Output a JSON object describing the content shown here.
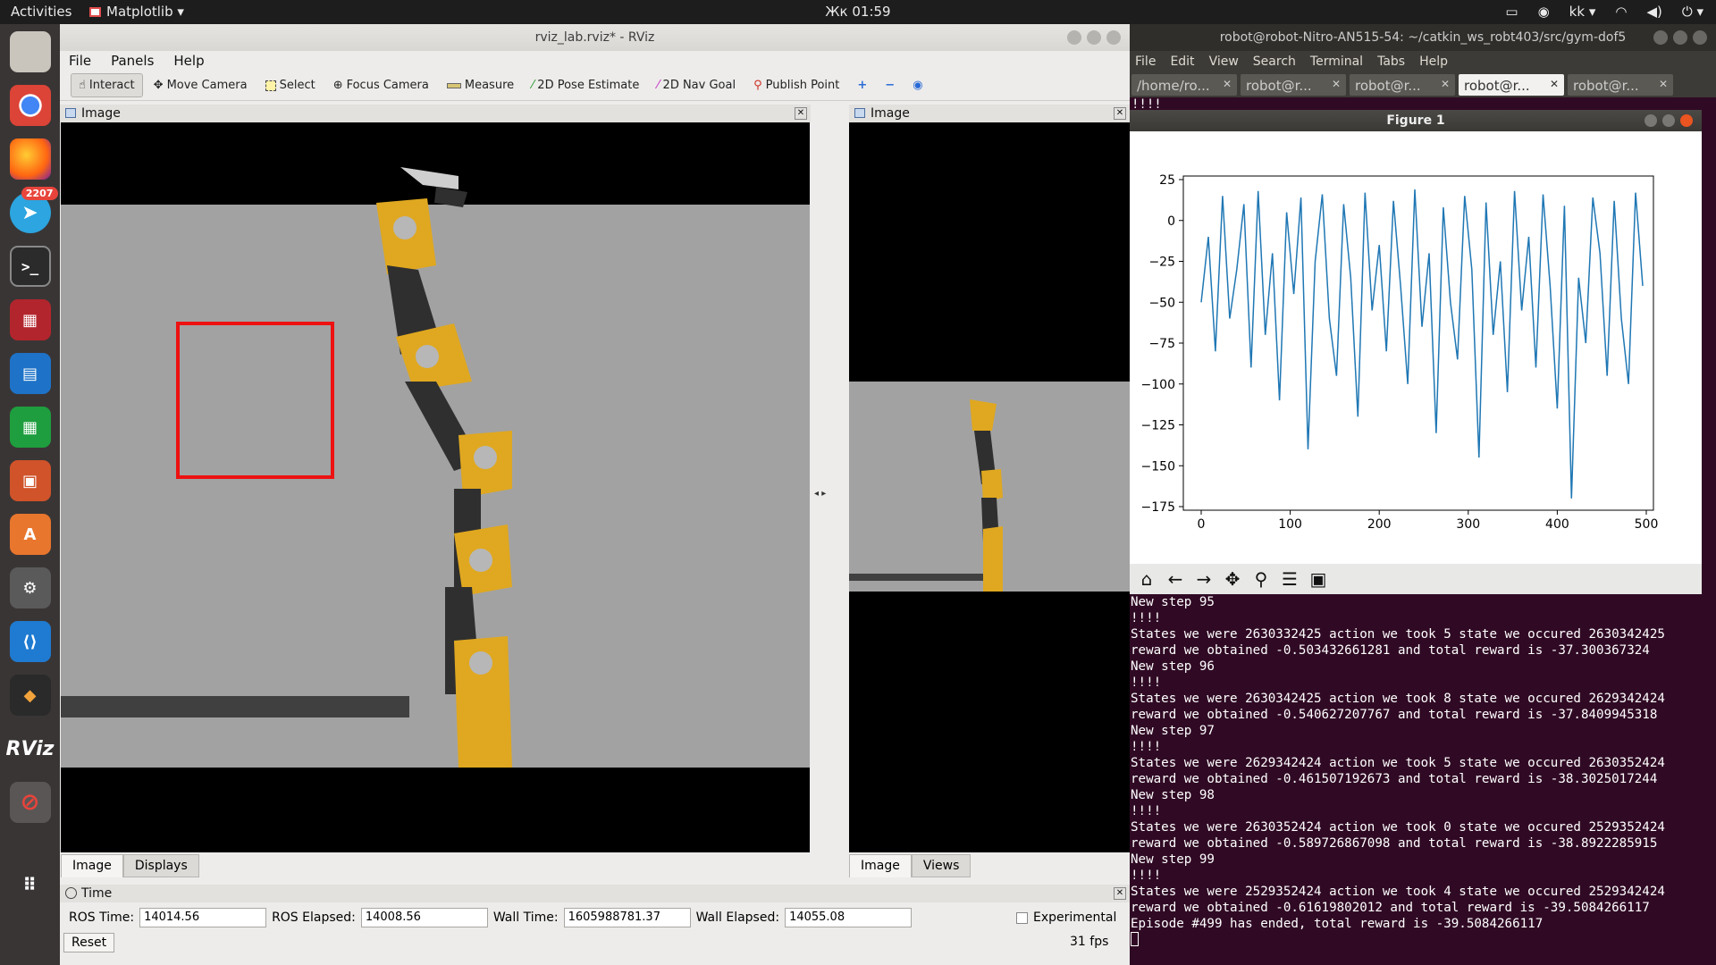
{
  "topbar": {
    "activities": "Activities",
    "app_menu": "Matplotlib ▾",
    "clock": "Жк 01:59",
    "user": "kk ▾"
  },
  "dock": {
    "telegram_badge": "2207",
    "rviz_label": "RViz"
  },
  "rviz": {
    "window_title": "rviz_lab.rviz* - RViz",
    "menu": [
      "File",
      "Panels",
      "Help"
    ],
    "tools": [
      "Interact",
      "Move Camera",
      "Select",
      "Focus Camera",
      "Measure",
      "2D Pose Estimate",
      "2D Nav Goal",
      "Publish Point"
    ],
    "left_panel": {
      "title": "Image",
      "tabs": [
        "Image",
        "Displays"
      ]
    },
    "right_panel": {
      "title": "Image",
      "tabs": [
        "Image",
        "Views"
      ]
    },
    "time_panel": {
      "title": "Time",
      "ros_time_label": "ROS Time:",
      "ros_time": "14014.56",
      "ros_elapsed_label": "ROS Elapsed:",
      "ros_elapsed": "14008.56",
      "wall_time_label": "Wall Time:",
      "wall_time": "1605988781.37",
      "wall_elapsed_label": "Wall Elapsed:",
      "wall_elapsed": "14055.08",
      "experimental_label": "Experimental",
      "reset_label": "Reset",
      "fps": "31 fps"
    }
  },
  "terminal": {
    "title": "robot@robot-Nitro-AN515-54: ~/catkin_ws_robt403/src/gym-dof5",
    "menu": [
      "File",
      "Edit",
      "View",
      "Search",
      "Terminal",
      "Tabs",
      "Help"
    ],
    "tabs": [
      "/home/ro...",
      "robot@r...",
      "robot@r...",
      "robot@r...",
      "robot@r..."
    ],
    "top_line": "!!!!",
    "lines": [
      "New step 95",
      "!!!!",
      "States we were 2630332425 action we took 5 state we occured 2630342425",
      "reward we obtained -0.503432661281 and total reward is -37.300367324",
      "New step 96",
      "!!!!",
      "States we were 2630342425 action we took 8 state we occured 2629342424",
      "reward we obtained -0.540627207767 and total reward is -37.8409945318",
      "New step 97",
      "!!!!",
      "States we were 2629342424 action we took 5 state we occured 2630352424",
      "reward we obtained -0.461507192673 and total reward is -38.3025017244",
      "New step 98",
      "!!!!",
      "States we were 2630352424 action we took 0 state we occured 2529352424",
      "reward we obtained -0.589726867098 and total reward is -38.8922285915",
      "New step 99",
      "!!!!",
      "States we were 2529352424 action we took 4 state we occured 2529342424",
      "reward we obtained -0.61619802012 and total reward is -39.5084266117",
      "Episode #499 has ended, total reward is -39.5084266117"
    ]
  },
  "figure": {
    "title": "Figure 1"
  },
  "chart_data": {
    "type": "line",
    "title": "",
    "xlabel": "",
    "ylabel": "",
    "xlim": [
      0,
      500
    ],
    "ylim": [
      -175,
      25
    ],
    "xticks": [
      0,
      100,
      200,
      300,
      400,
      500
    ],
    "yticks": [
      25,
      0,
      -25,
      -50,
      -75,
      -100,
      -125,
      -150,
      -175
    ],
    "series": [
      {
        "x": [
          0,
          8,
          16,
          24,
          32,
          40,
          48,
          56,
          64,
          72,
          80,
          88,
          96,
          104,
          112,
          120,
          128,
          136,
          144,
          152,
          160,
          168,
          176,
          184,
          192,
          200,
          208,
          216,
          224,
          232,
          240,
          248,
          256,
          264,
          272,
          280,
          288,
          296,
          304,
          312,
          320,
          328,
          336,
          344,
          352,
          360,
          368,
          376,
          384,
          392,
          400,
          408,
          416,
          424,
          432,
          440,
          448,
          456,
          464,
          472,
          480,
          488,
          496
        ],
        "values": [
          -50,
          -10,
          -80,
          15,
          -60,
          -30,
          10,
          -90,
          18,
          -70,
          -20,
          -110,
          5,
          -45,
          14,
          -140,
          -25,
          16,
          -60,
          -95,
          10,
          -35,
          -120,
          17,
          -55,
          -15,
          -80,
          12,
          -40,
          -100,
          19,
          -65,
          -20,
          -130,
          8,
          -50,
          -85,
          15,
          -30,
          -145,
          11,
          -70,
          -25,
          -105,
          18,
          -55,
          -10,
          -90,
          16,
          -40,
          -115,
          9,
          -170,
          -35,
          -75,
          14,
          -20,
          -95,
          12,
          -60,
          -100,
          17,
          -40
        ]
      }
    ]
  }
}
